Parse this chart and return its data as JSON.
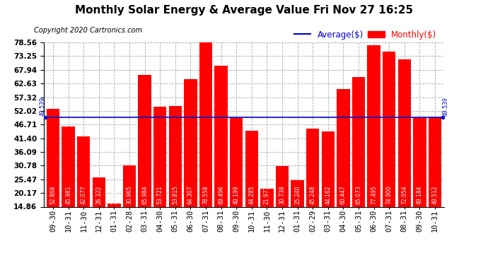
{
  "title": "Monthly Solar Energy & Average Value Fri Nov 27 16:25",
  "copyright": "Copyright 2020 Cartronics.com",
  "categories": [
    "09-30",
    "10-31",
    "11-30",
    "12-31",
    "01-31",
    "02-28",
    "03-31",
    "04-30",
    "05-31",
    "06-30",
    "07-31",
    "08-31",
    "09-30",
    "10-31",
    "11-30",
    "12-31",
    "01-31",
    "02-29",
    "03-31",
    "04-30",
    "05-31",
    "06-30",
    "07-31",
    "08-31",
    "09-30",
    "10-31"
  ],
  "values": [
    52.868,
    45.981,
    42.077,
    26.322,
    16.107,
    30.965,
    65.984,
    53.721,
    53.815,
    64.307,
    78.558,
    69.496,
    49.199,
    44.285,
    21.977,
    30.738,
    25.24,
    45.248,
    44.162,
    60.447,
    65.073,
    77.495,
    74.9,
    72.054,
    49.184,
    49.512
  ],
  "average": 49.539,
  "bar_color": "#ff0000",
  "average_color": "#0000cc",
  "bar_label_color": "#ffffff",
  "avg_label_color": "#0000cc",
  "background_color": "#ffffff",
  "grid_color": "#aaaaaa",
  "yticks": [
    14.86,
    20.17,
    25.47,
    30.78,
    36.09,
    41.4,
    46.71,
    52.02,
    57.32,
    62.63,
    67.94,
    73.25,
    78.56
  ],
  "ylim": [
    14.86,
    78.56
  ],
  "legend_average_label": "Average($)",
  "legend_monthly_label": "Monthly($)",
  "avg_label": "49.539",
  "title_fontsize": 11,
  "copyright_fontsize": 7,
  "bar_label_fontsize": 5.5,
  "tick_fontsize": 7.5,
  "legend_fontsize": 8.5
}
